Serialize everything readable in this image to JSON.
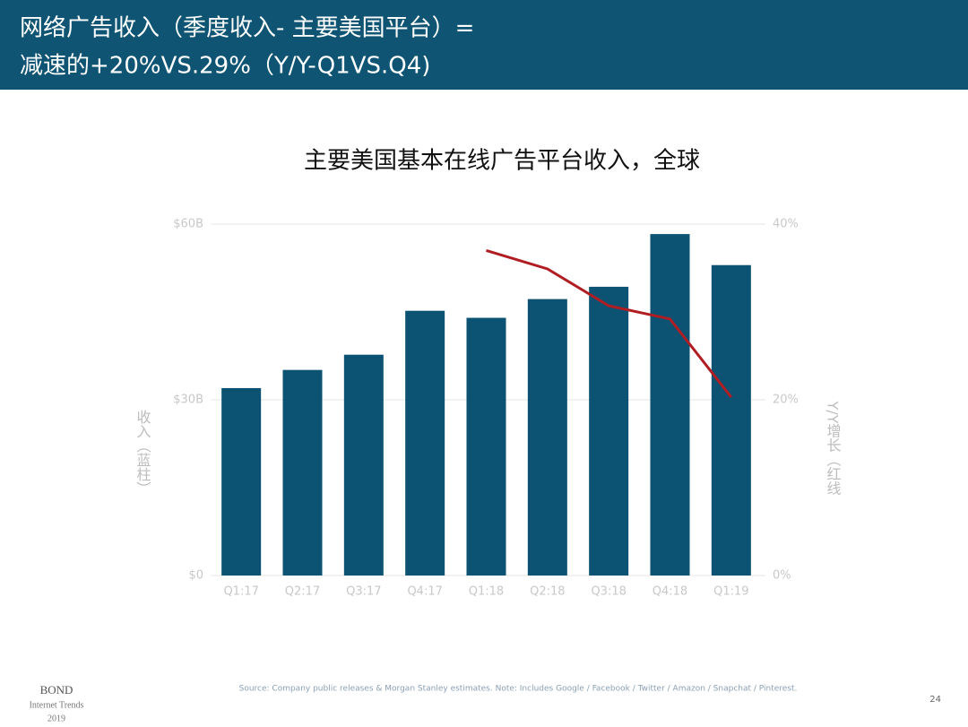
{
  "header": {
    "title_line1": "网络广告收入（季度收入- 主要美国平台）=",
    "title_line2": "减速的+20%VS.29%（Y/Y-Q1VS.Q4)"
  },
  "chart_data": {
    "type": "bar_line",
    "title": "主要美国基本在线广告平台收入，全球",
    "categories": [
      "Q1:17",
      "Q2:17",
      "Q3:17",
      "Q4:17",
      "Q1:18",
      "Q2:18",
      "Q3:18",
      "Q4:18",
      "Q1:19"
    ],
    "series": [
      {
        "name": "收入",
        "type": "bar",
        "color": "#0b5273",
        "values": [
          32.0,
          35.1,
          37.7,
          45.2,
          44.0,
          47.2,
          49.3,
          58.3,
          53.0
        ]
      },
      {
        "name": "Y/Y增长",
        "type": "line",
        "axis": "y2",
        "color": "#b01e23",
        "values": [
          null,
          null,
          null,
          null,
          37.0,
          34.9,
          30.7,
          29.2,
          20.3
        ]
      }
    ],
    "ylim": [
      0,
      60
    ],
    "yticks": [
      {
        "value": 0,
        "label": "$0"
      },
      {
        "value": 30,
        "label": "$30B"
      },
      {
        "value": 60,
        "label": "$60B"
      }
    ],
    "y2lim": [
      0,
      40
    ],
    "y2ticks": [
      {
        "value": 0,
        "label": "0%"
      },
      {
        "value": 20,
        "label": "20%"
      },
      {
        "value": 40,
        "label": "40%"
      }
    ],
    "ylabel": "收入（蓝柱）",
    "y2label": "Y/Y增长（红线",
    "grid": true
  },
  "footer": {
    "source": "Source: Company public releases & Morgan Stanley estimates. Note: Includes Google / Facebook / Twitter / Amazon / Snapchat / Pinterest.",
    "page": "24",
    "logo": "BOND",
    "logo_sub": "Internet Trends",
    "logo_year": "2019"
  }
}
